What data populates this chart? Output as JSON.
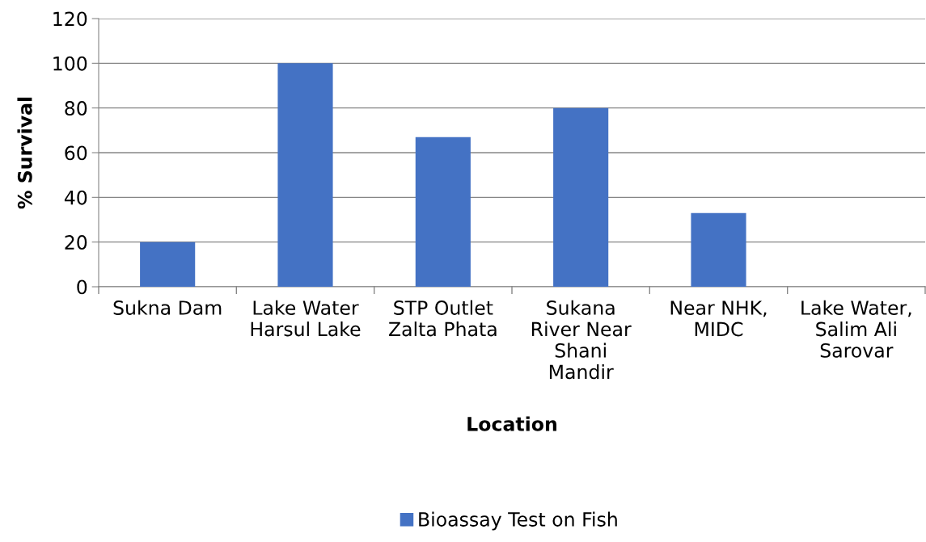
{
  "chart_data": {
    "type": "bar",
    "xlabel": "Location",
    "ylabel": "% Survival",
    "categories": [
      "Sukna Dam",
      "Lake Water\nHarsul Lake",
      "STP Outlet\nZalta Phata",
      "Sukana\nRiver Near\nShani\nMandir",
      "Near NHK,\nMIDC",
      "Lake Water,\nSalim Ali\nSarovar"
    ],
    "series": [
      {
        "name": "Bioassay Test on Fish",
        "color": "#4472c4",
        "values": [
          20,
          100,
          67,
          80,
          33,
          0
        ]
      }
    ],
    "ylim": [
      0,
      120
    ],
    "yticks": [
      0,
      20,
      40,
      60,
      80,
      100,
      120
    ],
    "grid": "y",
    "legend": "bottom"
  }
}
